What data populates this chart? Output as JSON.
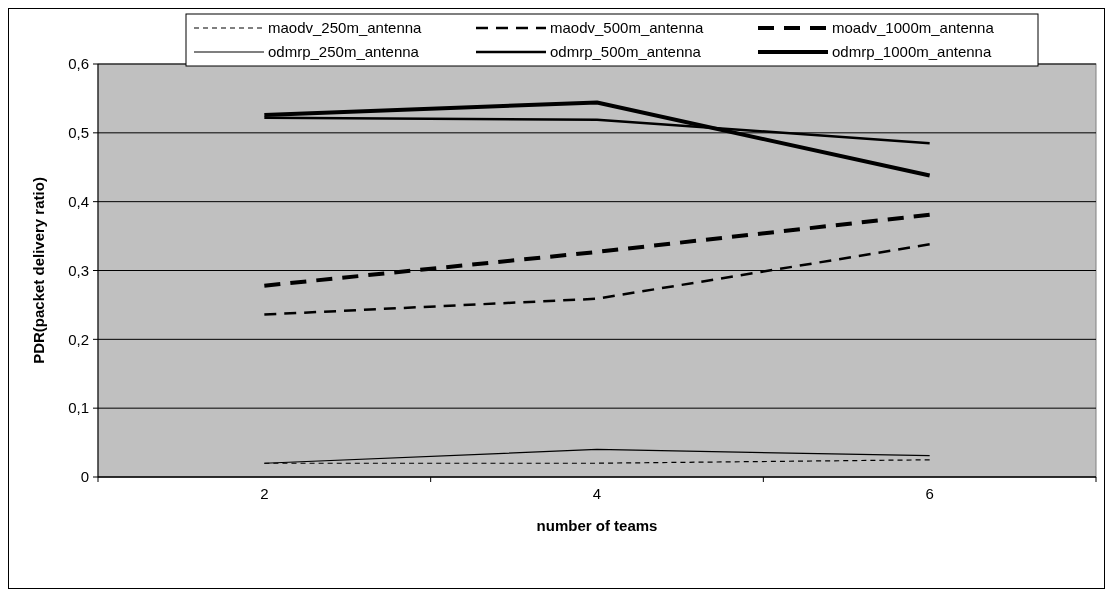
{
  "chart_data": {
    "type": "line",
    "xlabel": "number of teams",
    "ylabel": "PDR(packet delivery ratio)",
    "categories": [
      "2",
      "4",
      "6"
    ],
    "ylim": [
      0,
      0.6
    ],
    "yticks": [
      {
        "value": 0,
        "label": "0"
      },
      {
        "value": 0.1,
        "label": "0,1"
      },
      {
        "value": 0.2,
        "label": "0,2"
      },
      {
        "value": 0.3,
        "label": "0,3"
      },
      {
        "value": 0.4,
        "label": "0,4"
      },
      {
        "value": 0.5,
        "label": "0,5"
      },
      {
        "value": 0.6,
        "label": "0,6"
      }
    ],
    "grid": "y",
    "legend": "top",
    "marker": "none",
    "series": [
      {
        "name": "maodv_250m_antenna",
        "color": "#000000",
        "line_style": "dashed",
        "values": [
          0.02,
          0.02,
          0.025
        ]
      },
      {
        "name": "maodv_500m_antenna",
        "color": "#000000",
        "line_style": "dashed",
        "values": [
          0.236,
          0.259,
          0.338
        ]
      },
      {
        "name": "moadv_1000m_antenna",
        "color": "#000000",
        "line_style": "dashed",
        "values": [
          0.278,
          0.327,
          0.381
        ]
      },
      {
        "name": "odmrp_250m_antenna",
        "color": "#000000",
        "line_style": "solid",
        "values": [
          0.02,
          0.04,
          0.031
        ]
      },
      {
        "name": "odmrp_500m_antenna",
        "color": "#000000",
        "line_style": "solid",
        "values": [
          0.522,
          0.519,
          0.485
        ]
      },
      {
        "name": "odmrp_1000m_antenna",
        "color": "#000000",
        "line_style": "solid",
        "values": [
          0.526,
          0.544,
          0.438
        ]
      }
    ]
  }
}
